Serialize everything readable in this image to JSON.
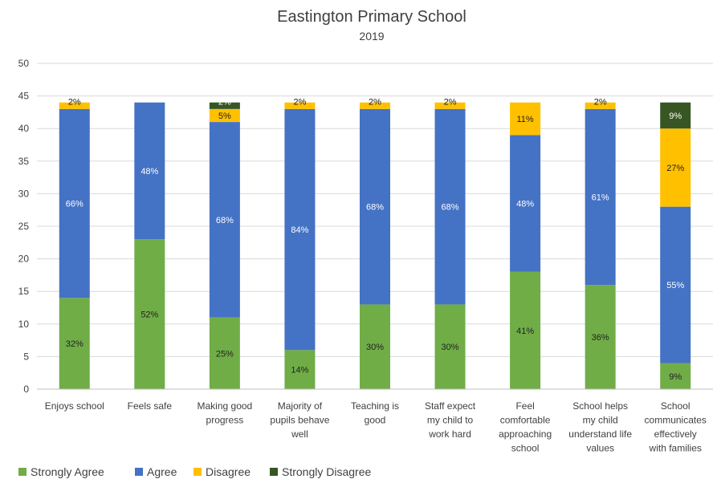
{
  "chart_data": {
    "type": "bar",
    "stacked": true,
    "title": "Eastington Primary School",
    "subtitle": "2019",
    "ylim": [
      0,
      50
    ],
    "yticks": [
      0,
      5,
      10,
      15,
      20,
      25,
      30,
      35,
      40,
      45,
      50
    ],
    "grid": true,
    "legend_position": "bottom-left",
    "categories": [
      "Enjoys school",
      "Feels safe",
      "Making good progress",
      "Majority of pupils behave well",
      "Teaching is good",
      "Staff expect my child to work hard",
      "Feel comfortable approaching school",
      "School helps my child understand life values",
      "School communicates effectively with families"
    ],
    "category_lines": [
      [
        "Enjoys school"
      ],
      [
        "Feels safe"
      ],
      [
        "Making good",
        "progress"
      ],
      [
        "Majority of",
        "pupils behave",
        "well"
      ],
      [
        "Teaching is",
        "good"
      ],
      [
        "Staff expect",
        "my child to",
        "work hard"
      ],
      [
        "Feel",
        "comfortable",
        "approaching",
        "school"
      ],
      [
        "School helps",
        "my child",
        "understand life",
        "values"
      ],
      [
        "School",
        "communicates",
        "effectively",
        "with families"
      ]
    ],
    "series": [
      {
        "name": "Strongly Agree",
        "color": "#70ad47",
        "values": [
          14,
          23,
          11,
          6,
          13,
          13,
          18,
          16,
          4
        ],
        "labels": [
          "32%",
          "52%",
          "25%",
          "14%",
          "30%",
          "30%",
          "41%",
          "36%",
          "9%"
        ]
      },
      {
        "name": "Agree",
        "color": "#4472c4",
        "values": [
          29,
          21,
          30,
          37,
          30,
          30,
          21,
          27,
          24
        ],
        "labels": [
          "66%",
          "48%",
          "68%",
          "84%",
          "68%",
          "68%",
          "48%",
          "61%",
          "55%"
        ]
      },
      {
        "name": "Disagree",
        "color": "#ffc000",
        "values": [
          1,
          0,
          2,
          1,
          1,
          1,
          5,
          1,
          12
        ],
        "labels": [
          "2%",
          "",
          "5%",
          "2%",
          "2%",
          "2%",
          "11%",
          "2%",
          "27%"
        ]
      },
      {
        "name": "Strongly Disagree",
        "color": "#375623",
        "values": [
          0,
          0,
          1,
          0,
          0,
          0,
          0,
          0,
          4
        ],
        "labels": [
          "",
          "",
          "2%",
          "",
          "",
          "",
          "",
          "",
          "9%"
        ]
      }
    ]
  }
}
